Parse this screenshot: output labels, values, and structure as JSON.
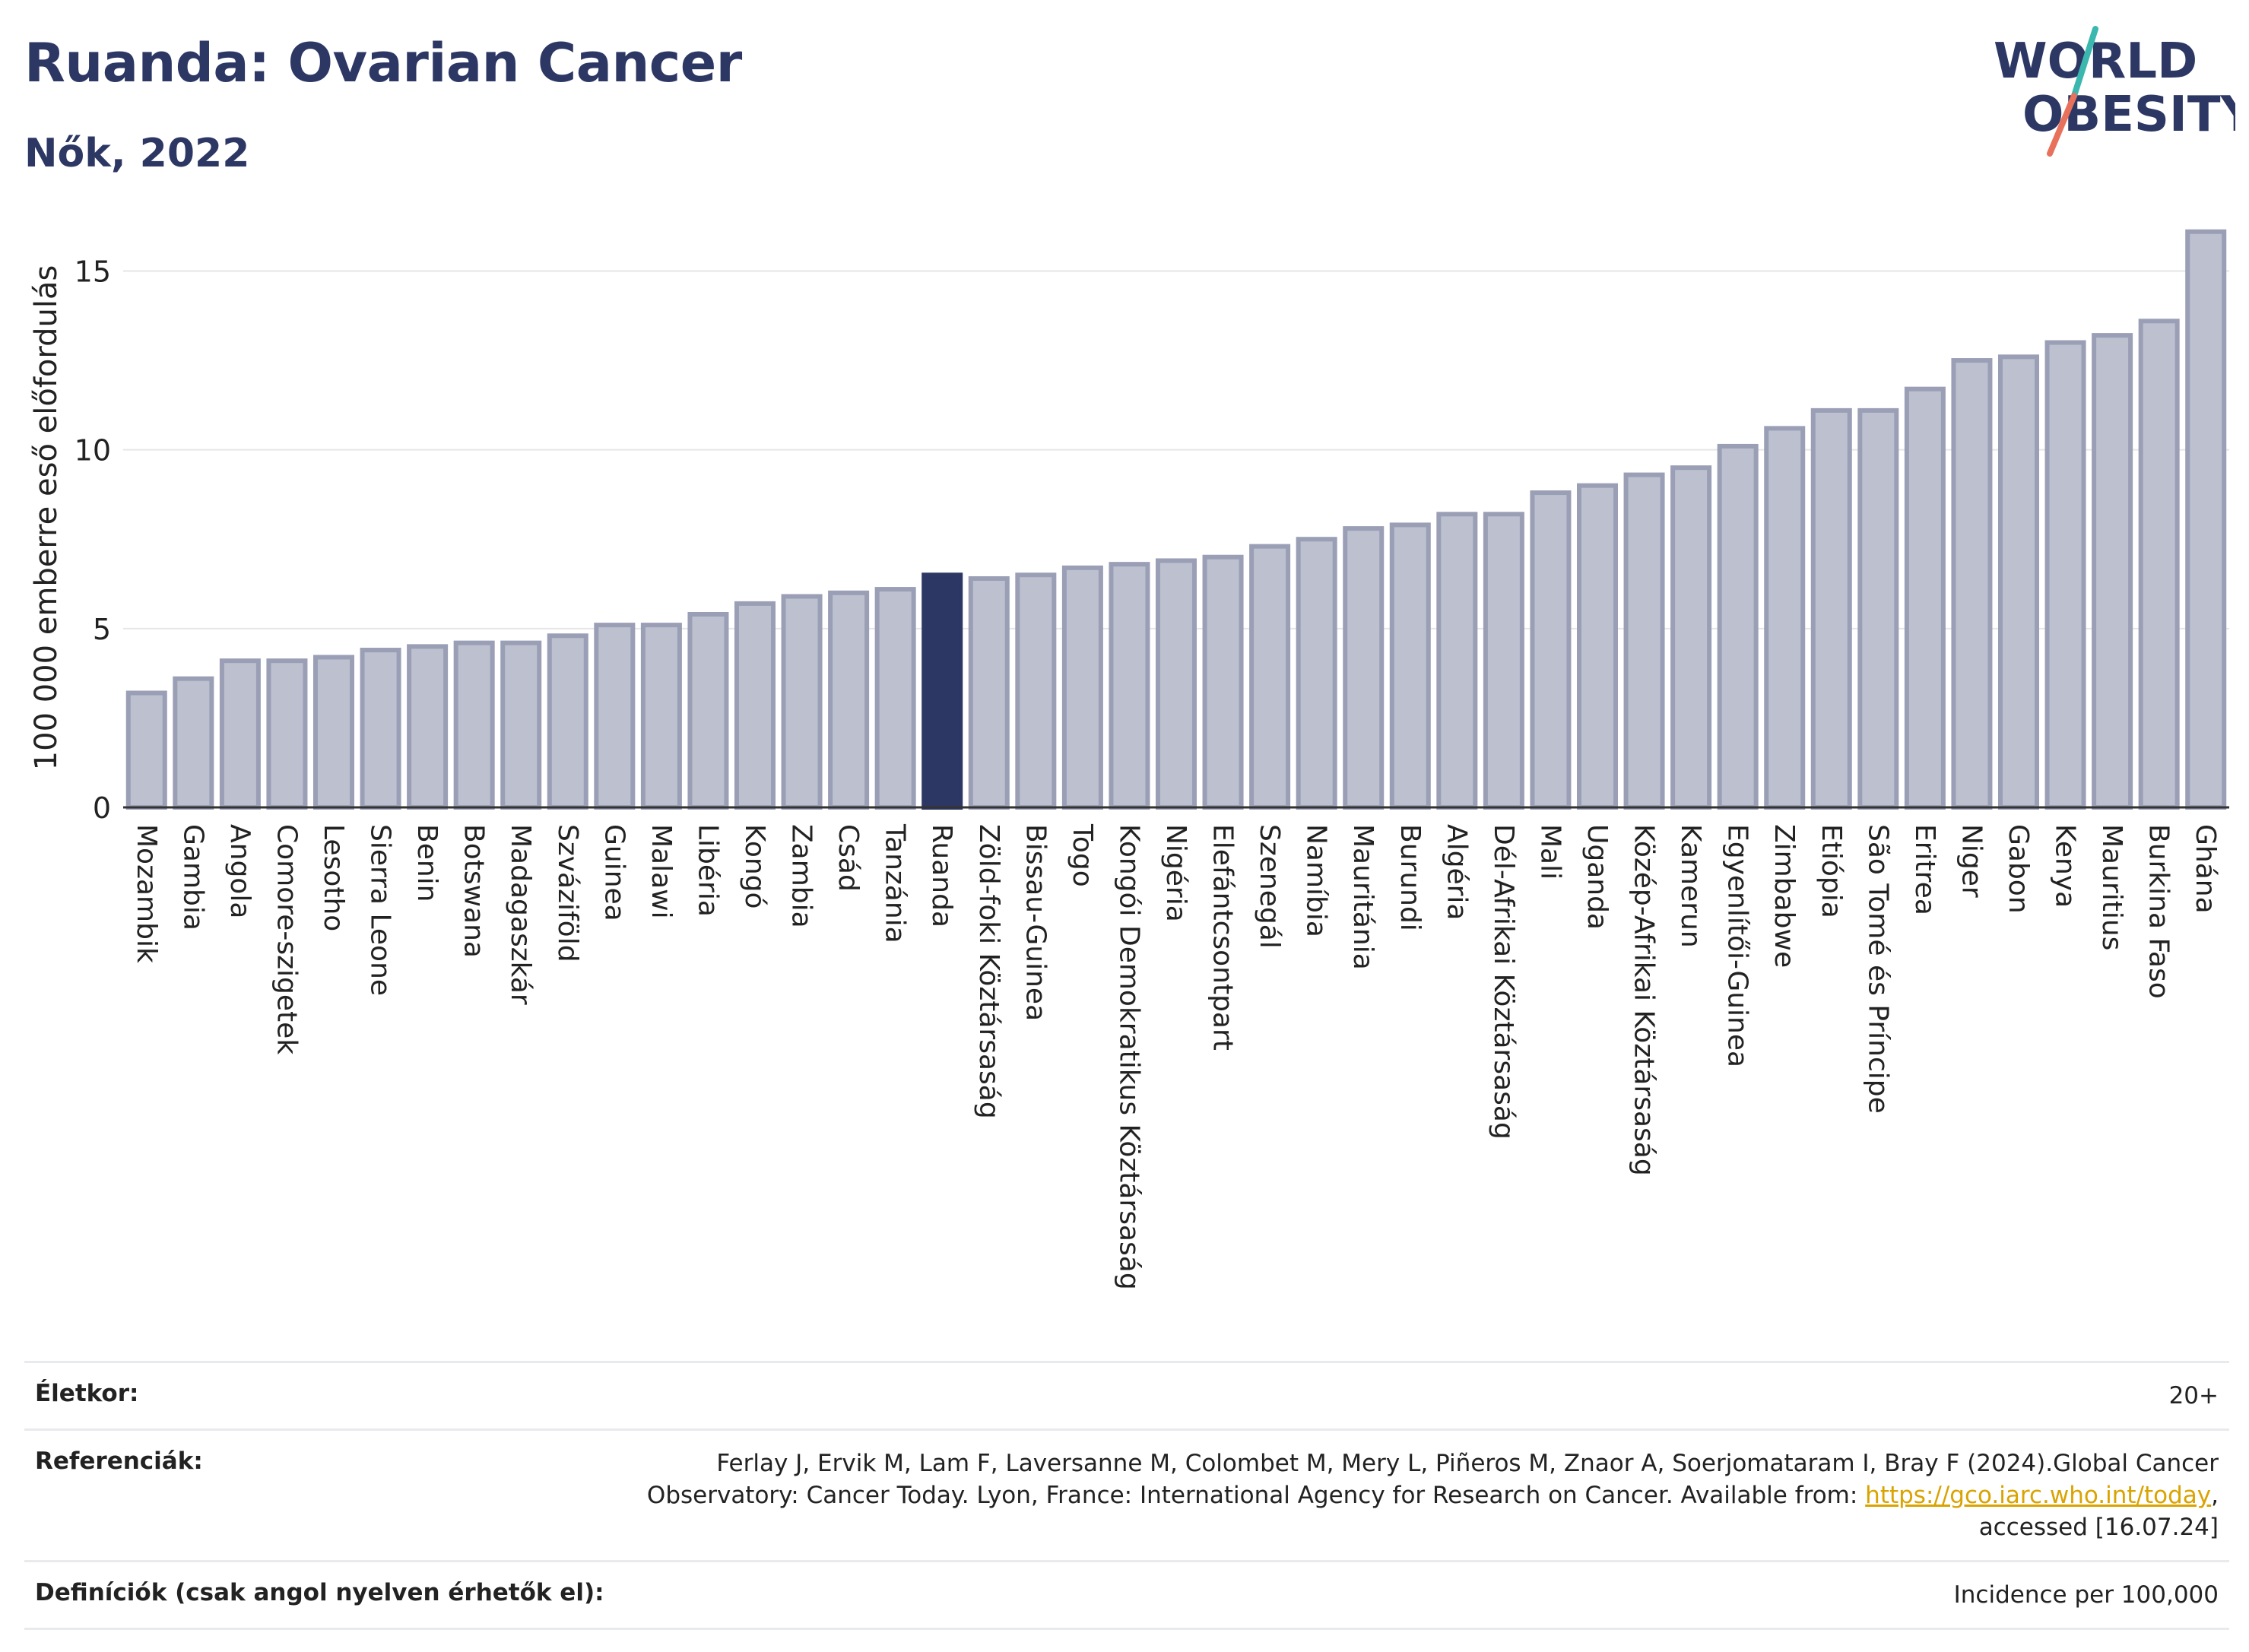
{
  "header": {
    "title": "Ruanda: Ovarian Cancer",
    "subtitle": "Nők, 2022"
  },
  "logo": {
    "line1": "WORLD",
    "line2": "OBESITY",
    "name": "world-obesity-logo"
  },
  "colors": {
    "highlight": "#2c3764",
    "bar": "#bcc0cf",
    "bar_edge": "#9a9fb6",
    "grid": "#e6e6e6",
    "title": "#2c3764",
    "link": "#d9a300"
  },
  "chart_data": {
    "type": "bar",
    "title": "Ruanda: Ovarian Cancer",
    "subtitle": "Nők, 2022",
    "xlabel": "",
    "ylabel": "100 000 emberre eső előfordulás",
    "ylim": [
      0,
      16.2
    ],
    "yticks": [
      0,
      5,
      10,
      15
    ],
    "grid": true,
    "highlight": "Ruanda",
    "categories": [
      "Mozambik",
      "Gambia",
      "Angola",
      "Comore-szigetek",
      "Lesotho",
      "Sierra Leone",
      "Benin",
      "Botswana",
      "Madagaszkár",
      "Szváziföld",
      "Guinea",
      "Malawi",
      "Libéria",
      "Kongó",
      "Zambia",
      "Csád",
      "Tanzánia",
      "Ruanda",
      "Zöld-foki Köztársaság",
      "Bissau-Guinea",
      "Togo",
      "Kongói Demokratikus Köztársaság",
      "Nigéria",
      "Elefántcsontpart",
      "Szenegál",
      "Namíbia",
      "Mauritánia",
      "Burundi",
      "Algéria",
      "Dél-Afrikai Köztársaság",
      "Mali",
      "Uganda",
      "Közép-Afrikai Köztársaság",
      "Kamerun",
      "Egyenlítői-Guinea",
      "Zimbabwe",
      "Etiópia",
      "São Tomé és Príncipe",
      "Eritrea",
      "Niger",
      "Gabon",
      "Kenya",
      "Mauritius",
      "Burkina Faso",
      "Ghána"
    ],
    "values": [
      3.2,
      3.6,
      4.1,
      4.1,
      4.2,
      4.4,
      4.5,
      4.6,
      4.6,
      4.8,
      5.1,
      5.1,
      5.4,
      5.7,
      5.9,
      6.0,
      6.1,
      6.5,
      6.4,
      6.5,
      6.7,
      6.8,
      6.9,
      7.0,
      7.3,
      7.5,
      7.8,
      7.9,
      8.2,
      8.2,
      8.8,
      9.0,
      9.3,
      9.5,
      10.1,
      10.6,
      11.1,
      11.1,
      11.7,
      12.5,
      12.6,
      13.0,
      13.2,
      13.6,
      16.1
    ]
  },
  "info": {
    "age_label": "Életkor:",
    "age_value": "20+",
    "ref_label": "Referenciák:",
    "ref_text1": "Ferlay J, Ervik M, Lam F, Laversanne M, Colombet M, Mery L, Piñeros M, Znaor A, Soerjomataram I, Bray F (2024).Global Cancer Observatory: Cancer Today. Lyon, France: International Agency for Research on Cancer. Available from: ",
    "ref_link": "https://gco.iarc.who.int/today",
    "ref_text2": ", accessed [16.07.24]",
    "def_label": "Definíciók (csak angol nyelven érhetők el):",
    "def_value": "Incidence per 100,000"
  }
}
